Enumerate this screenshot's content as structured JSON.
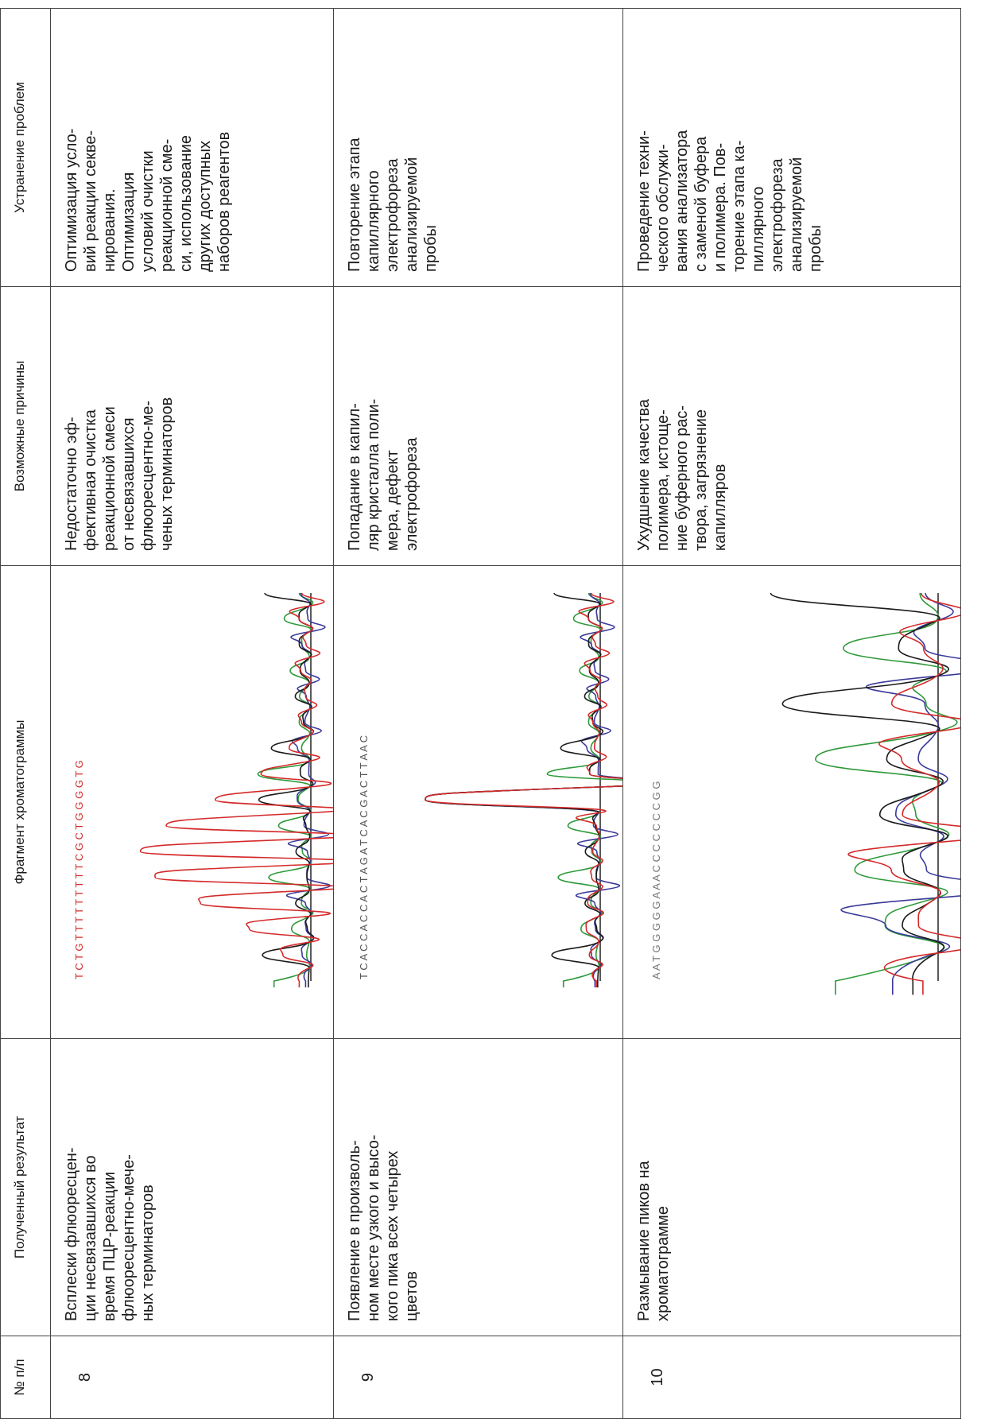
{
  "table": {
    "headers": {
      "num": "№ п/п",
      "result": "Полученный результат",
      "fragment": "Фрагмент хроматограммы",
      "causes": "Возможные причины",
      "fix": "Устранение проблем"
    },
    "rows": [
      {
        "num": "8",
        "result": [
          "Всплески флюоресцен-",
          "ции несвязавшихся во",
          "время ПЦР-реакции",
          "флюоресцентно-мече-",
          "ных терминаторов"
        ],
        "sequence": "T C T G T T T T T T T T T C G C T G G G G T G",
        "causes": [
          "Недостаточно эф-",
          "фективная очистка",
          "реакционной смеси",
          "от несвязавшихся",
          "флюоресцентно-ме-",
          "ченых терминаторов"
        ],
        "fix": [
          "Оптимизация усло-",
          "вий реакции секве-",
          "нирования.",
          "Оптимизация",
          "условий очистки",
          "реакционной сме-",
          "си, использование",
          "других доступных",
          "наборов реагентов"
        ]
      },
      {
        "num": "9",
        "result": [
          "Появление в произволь-",
          "ном месте узкого и высо-",
          "кого пика всех четырех",
          "цветов"
        ],
        "sequence": "T C A C C A C C A C T A G A T C A C G A C T T A A C",
        "causes": [
          "Попадание в капил-",
          "ляр кристалла поли-",
          "мера, дефект",
          "электрофореза"
        ],
        "fix": [
          "Повторение этапа",
          "капиллярного",
          "электрофореза",
          "анализируемой",
          "пробы"
        ]
      },
      {
        "num": "10",
        "result": [
          "Размывание пиков на",
          "хроматограмме"
        ],
        "sequence": "A A T G G G G G A A A C C C C C C C G G",
        "causes": [
          "Ухудшение качества",
          "полимера, истоще-",
          "ние буферного рас-",
          "твора, загрязнение",
          "капилляров"
        ],
        "fix": [
          "Проведение техни-",
          "ческого обслужи-",
          "вания анализатора",
          "с заменой буфера",
          "и полимера. Пов-",
          "торение этапа ка-",
          "пиллярного",
          "электрофореза",
          "анализируемой",
          "пробы"
        ]
      }
    ]
  },
  "trace_colors": {
    "A": "#2e9a3a",
    "C": "#3a3a9a",
    "G": "#1a1a1a",
    "T": "#d42a2a",
    "N": "#8a8a8a"
  }
}
